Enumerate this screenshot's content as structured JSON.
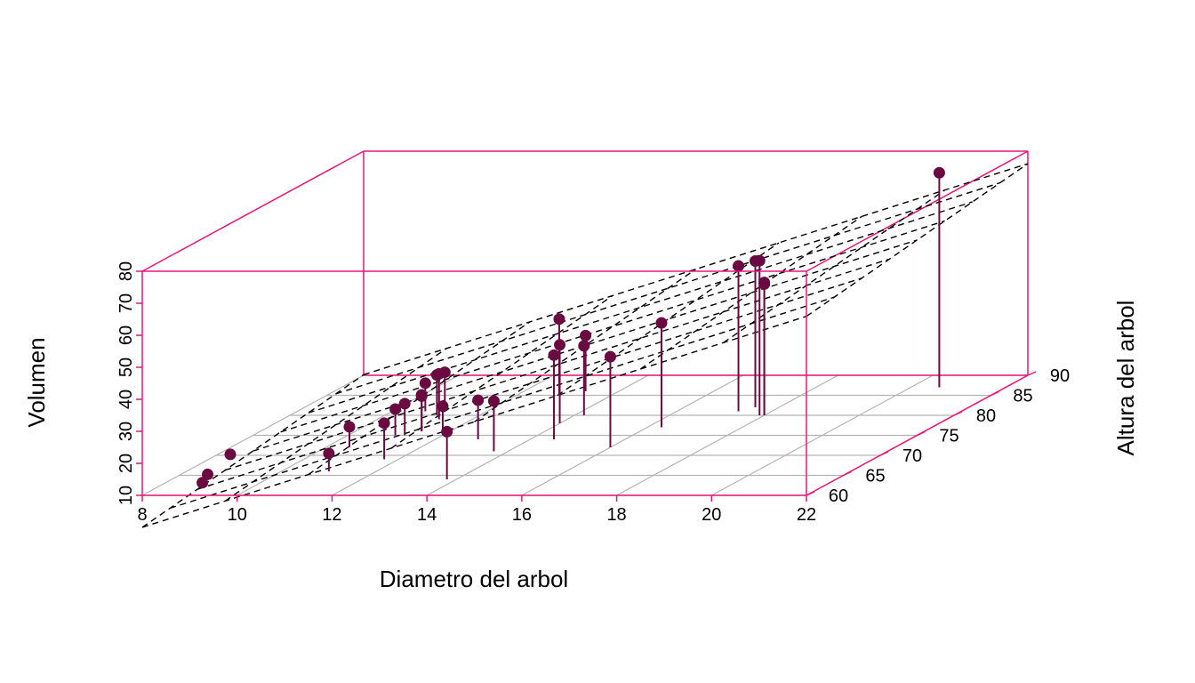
{
  "colors": {
    "box": "#e8177a",
    "grid": "#b3b3b3",
    "point": "#6b0a40",
    "plane": "#000000"
  },
  "chart_data": {
    "type": "scatter3d",
    "title": "",
    "xlabel": "Diametro del arbol",
    "ylabel": "Altura del arbol",
    "zlabel": "Volumen",
    "xlim": [
      8,
      22
    ],
    "ylim": [
      60,
      90
    ],
    "zlim": [
      10,
      80
    ],
    "xticks": [
      "8",
      "10",
      "12",
      "14",
      "16",
      "18",
      "20",
      "22"
    ],
    "yticks": [
      "60",
      "65",
      "70",
      "75",
      "80",
      "85",
      "90"
    ],
    "zticks": [
      "10",
      "20",
      "30",
      "40",
      "50",
      "60",
      "70",
      "80"
    ],
    "grid": true,
    "drop_lines": true,
    "regression_plane": {
      "intercept": -57.99,
      "coef_x": 4.708,
      "coef_y": 0.339
    },
    "points": [
      {
        "x": 8.3,
        "y": 70,
        "z": 10.3
      },
      {
        "x": 8.6,
        "y": 65,
        "z": 10.3
      },
      {
        "x": 8.8,
        "y": 63,
        "z": 10.2
      },
      {
        "x": 10.5,
        "y": 72,
        "z": 16.4
      },
      {
        "x": 10.7,
        "y": 81,
        "z": 18.8
      },
      {
        "x": 10.8,
        "y": 83,
        "z": 19.7
      },
      {
        "x": 11.0,
        "y": 66,
        "z": 15.6
      },
      {
        "x": 11.0,
        "y": 75,
        "z": 18.2
      },
      {
        "x": 11.1,
        "y": 80,
        "z": 22.6
      },
      {
        "x": 11.2,
        "y": 75,
        "z": 19.9
      },
      {
        "x": 11.3,
        "y": 79,
        "z": 24.2
      },
      {
        "x": 11.4,
        "y": 76,
        "z": 21.0
      },
      {
        "x": 11.4,
        "y": 76,
        "z": 21.4
      },
      {
        "x": 11.7,
        "y": 69,
        "z": 21.3
      },
      {
        "x": 12.0,
        "y": 75,
        "z": 19.1
      },
      {
        "x": 12.9,
        "y": 74,
        "z": 22.2
      },
      {
        "x": 12.9,
        "y": 85,
        "z": 33.8
      },
      {
        "x": 13.3,
        "y": 86,
        "z": 27.4
      },
      {
        "x": 13.7,
        "y": 71,
        "z": 25.7
      },
      {
        "x": 13.8,
        "y": 64,
        "z": 24.9
      },
      {
        "x": 14.0,
        "y": 78,
        "z": 34.5
      },
      {
        "x": 14.2,
        "y": 80,
        "z": 31.7
      },
      {
        "x": 14.5,
        "y": 74,
        "z": 36.3
      },
      {
        "x": 16.0,
        "y": 72,
        "z": 38.3
      },
      {
        "x": 16.3,
        "y": 77,
        "z": 42.6
      },
      {
        "x": 17.3,
        "y": 81,
        "z": 55.4
      },
      {
        "x": 17.5,
        "y": 82,
        "z": 55.7
      },
      {
        "x": 17.9,
        "y": 80,
        "z": 58.3
      },
      {
        "x": 18.0,
        "y": 80,
        "z": 51.5
      },
      {
        "x": 18.0,
        "y": 80,
        "z": 51.0
      },
      {
        "x": 20.6,
        "y": 87,
        "z": 77.0
      }
    ]
  }
}
